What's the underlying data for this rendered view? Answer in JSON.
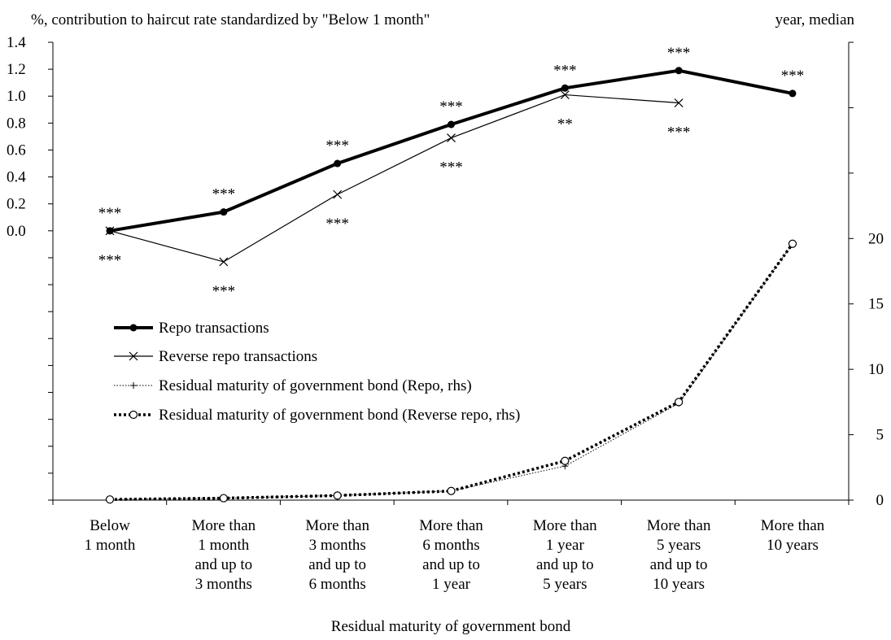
{
  "chart_data": {
    "type": "line",
    "title": "",
    "ylabel_left": "%, contribution to haircut rate standardized by \"Below 1 month\"",
    "ylabel_right": "year, median",
    "xlabel": "Residual maturity of government bond",
    "categories": [
      [
        "Below",
        "1 month"
      ],
      [
        "More than",
        "1 month",
        "and up to",
        "3 months"
      ],
      [
        "More than",
        "3 months",
        "and up to",
        "6 months"
      ],
      [
        "More than",
        "6 months",
        "and up to",
        "1 year"
      ],
      [
        "More than",
        "1 year",
        "and up to",
        "5 years"
      ],
      [
        "More than",
        "5 years",
        "and up to",
        "10 years"
      ],
      [
        "More than",
        "10 years"
      ]
    ],
    "y_left_ticks": [
      "1.4",
      "1.2",
      "1.0",
      "0.8",
      "0.6",
      "0.4",
      "0.2",
      "0.0"
    ],
    "y_left_tick_values": [
      1.4,
      1.2,
      1.0,
      0.8,
      0.6,
      0.4,
      0.2,
      0.0
    ],
    "y_left_range": [
      -2.0,
      1.4
    ],
    "y_right_ticks": [
      "20",
      "15",
      "10",
      "5",
      "0"
    ],
    "y_right_tick_values": [
      20,
      15,
      10,
      5,
      0
    ],
    "y_right_range": [
      0,
      35
    ],
    "legend_position": "center-left",
    "series": [
      {
        "name": "Repo transactions",
        "axis": "left",
        "style": "thick-dot",
        "values": [
          0.0,
          0.14,
          0.5,
          0.79,
          1.06,
          1.19,
          1.02
        ],
        "significance": [
          "***",
          "***",
          "***",
          "***",
          "***",
          "***",
          "***"
        ],
        "sig_position": "above"
      },
      {
        "name": "Reverse repo transactions",
        "axis": "left",
        "style": "thin-x",
        "values": [
          0.0,
          -0.23,
          0.27,
          0.69,
          1.01,
          0.95,
          null
        ],
        "significance": [
          "***",
          "***",
          "***",
          "***",
          "**",
          "***",
          null
        ],
        "sig_position": "below"
      },
      {
        "name": "Residual maturity of government bond (Repo, rhs)",
        "axis": "right",
        "style": "dotted-plus",
        "values": [
          0.05,
          0.15,
          0.35,
          0.7,
          2.6,
          7.4,
          19.6
        ]
      },
      {
        "name": "Residual maturity of government bond (Reverse repo, rhs)",
        "axis": "right",
        "style": "thick-dotted-circle",
        "values": [
          0.05,
          0.15,
          0.35,
          0.7,
          3.0,
          7.5,
          19.6
        ]
      }
    ],
    "grid": false
  }
}
